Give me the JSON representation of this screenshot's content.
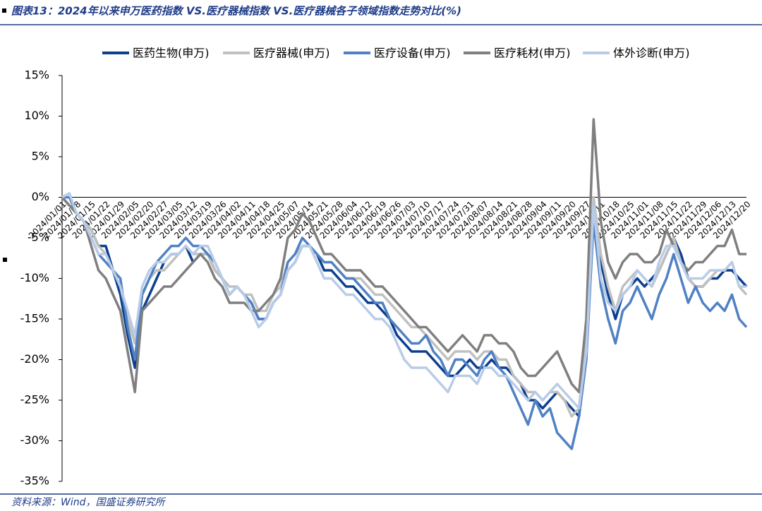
{
  "chart_data": {
    "type": "line",
    "title": "图表13：2024年以来申万医药指数 VS.医疗器械指数 VS.医疗器械各子领域指数走势对比(%)",
    "source": "资料来源：Wind，国盛证券研究所",
    "categories": [
      "2024/01/01",
      null,
      "2024/01/08",
      null,
      "2024/01/15",
      null,
      "2024/01/22",
      null,
      "2024/01/29",
      null,
      "2024/02/05",
      null,
      "2024/02/20",
      null,
      "2024/02/27",
      null,
      "2024/03/05",
      null,
      "2024/03/12",
      null,
      "2024/03/19",
      null,
      "2024/03/26",
      null,
      "2024/04/02",
      null,
      "2024/04/11",
      null,
      "2024/04/18",
      null,
      "2024/04/25",
      null,
      "2024/05/07",
      null,
      "2024/05/14",
      null,
      "2024/05/21",
      null,
      "2024/05/28",
      null,
      "2024/06/04",
      null,
      "2024/06/12",
      null,
      "2024/06/19",
      null,
      "2024/06/26",
      null,
      "2024/07/03",
      null,
      "2024/07/10",
      null,
      "2024/07/17",
      null,
      "2024/07/24",
      null,
      "2024/07/31",
      null,
      "2024/08/07",
      null,
      "2024/08/14",
      null,
      "2024/08/21",
      null,
      "2024/08/28",
      null,
      "2024/09/04",
      null,
      "2024/09/11",
      null,
      "2024/09/20",
      null,
      "2024/09/27",
      null,
      "2024/10/11",
      null,
      "2024/10/18",
      null,
      "2024/10/25",
      null,
      "2024/11/01",
      null,
      "2024/11/08",
      null,
      "2024/11/15",
      null,
      "2024/11/22",
      null,
      "2024/11/29",
      null,
      "2024/12/06",
      null,
      "2024/12/13",
      null,
      "2024/12/20"
    ],
    "series": [
      {
        "name": "医药生物(申万)",
        "color": "#0d3f8f",
        "values": [
          0,
          -1,
          -2,
          -3,
          -4,
          -6,
          -6,
          -9,
          -12,
          -17,
          -21,
          -14,
          -12,
          -10,
          -8,
          -7,
          -7,
          -6,
          -8,
          -7,
          -7,
          -9,
          -10,
          -12,
          -11,
          -12,
          -13,
          -15,
          -15,
          -13,
          -12,
          -9,
          -8,
          -6,
          -6,
          -7,
          -9,
          -9,
          -10,
          -11,
          -11,
          -12,
          -13,
          -13,
          -14,
          -15,
          -17,
          -18,
          -19,
          -19,
          -19,
          -20,
          -21,
          -22,
          -22,
          -21,
          -20,
          -21,
          -21,
          -20,
          -21,
          -21,
          -22,
          -23,
          -25,
          -25,
          -26,
          -25,
          -24,
          -25,
          -26,
          -27,
          -18,
          -2,
          -8,
          -12,
          -15,
          -12,
          -11,
          -10,
          -11,
          -10,
          -9,
          -7,
          -5,
          -7,
          -10,
          -11,
          -11,
          -10,
          -10,
          -9,
          -9,
          -10,
          -11
        ]
      },
      {
        "name": "医疗器械(申万)",
        "color": "#c0c0c0",
        "values": [
          0,
          -1,
          -2,
          -3,
          -4,
          -6,
          -7,
          -9,
          -11,
          -15,
          -18,
          -12,
          -10,
          -9,
          -9,
          -8,
          -7,
          -6,
          -7,
          -7,
          -7,
          -9,
          -10,
          -11,
          -11,
          -12,
          -12,
          -14,
          -14,
          -12,
          -11,
          -8,
          -7,
          -6,
          -6,
          -7,
          -8,
          -8,
          -9,
          -10,
          -10,
          -10,
          -11,
          -12,
          -12,
          -13,
          -14,
          -15,
          -16,
          -16,
          -17,
          -18,
          -19,
          -20,
          -19,
          -19,
          -19,
          -20,
          -19,
          -19,
          -20,
          -20,
          -22,
          -23,
          -24,
          -24,
          -25,
          -24,
          -24,
          -25,
          -27,
          -26,
          -17,
          0,
          -7,
          -11,
          -14,
          -11,
          -10,
          -9,
          -10,
          -11,
          -9,
          -7,
          -5,
          -8,
          -10,
          -11,
          -11,
          -10,
          -9,
          -9,
          -8,
          -11,
          -12
        ]
      },
      {
        "name": "医疗设备(申万)",
        "color": "#4f81c4",
        "values": [
          0,
          0,
          -2,
          -3,
          -5,
          -7,
          -8,
          -9,
          -10,
          -16,
          -20,
          -12,
          -10,
          -8,
          -7,
          -6,
          -6,
          -5,
          -6,
          -6,
          -7,
          -8,
          -10,
          -12,
          -11,
          -12,
          -13,
          -15,
          -15,
          -13,
          -12,
          -8,
          -7,
          -5,
          -6,
          -7,
          -8,
          -8,
          -9,
          -10,
          -10,
          -11,
          -12,
          -13,
          -13,
          -15,
          -16,
          -17,
          -18,
          -18,
          -17,
          -19,
          -20,
          -22,
          -20,
          -20,
          -21,
          -22,
          -20,
          -19,
          -21,
          -22,
          -24,
          -26,
          -28,
          -25,
          -27,
          -26,
          -29,
          -30,
          -31,
          -27,
          -20,
          -3,
          -11,
          -15,
          -18,
          -14,
          -13,
          -11,
          -13,
          -15,
          -12,
          -10,
          -7,
          -10,
          -13,
          -11,
          -13,
          -14,
          -13,
          -14,
          -12,
          -15,
          -16
        ]
      },
      {
        "name": "医疗耗材(申万)",
        "color": "#7f7f7f",
        "values": [
          0,
          -1,
          -2,
          -3,
          -6,
          -9,
          -10,
          -12,
          -14,
          -19,
          -24,
          -14,
          -13,
          -12,
          -11,
          -11,
          -10,
          -9,
          -8,
          -7,
          -8,
          -10,
          -11,
          -13,
          -13,
          -13,
          -14,
          -14,
          -13,
          -12,
          -10,
          -5,
          -4,
          -2,
          -3,
          -5,
          -7,
          -7,
          -8,
          -9,
          -9,
          -9,
          -10,
          -11,
          -11,
          -12,
          -13,
          -14,
          -15,
          -16,
          -16,
          -17,
          -18,
          -19,
          -18,
          -17,
          -18,
          -19,
          -17,
          -17,
          -18,
          -18,
          -19,
          -21,
          -22,
          -22,
          -21,
          -20,
          -19,
          -21,
          -23,
          -24,
          -15,
          9.6,
          -3,
          -8,
          -10,
          -8,
          -7,
          -7,
          -8,
          -8,
          -7,
          -4,
          -6,
          -8,
          -9,
          -8,
          -8,
          -7,
          -6,
          -6,
          -4,
          -7,
          -7
        ]
      },
      {
        "name": "体外诊断(申万)",
        "color": "#b8cce8",
        "values": [
          0,
          0.5,
          -2,
          -3,
          -5,
          -7,
          -7,
          -9,
          -11,
          -14,
          -17,
          -11,
          -9,
          -8,
          -8,
          -7,
          -7,
          -6,
          -7,
          -6,
          -6,
          -8,
          -10,
          -12,
          -11,
          -12,
          -14,
          -16,
          -15,
          -13,
          -12,
          -9,
          -8,
          -6,
          -6,
          -8,
          -10,
          -10,
          -11,
          -12,
          -12,
          -13,
          -14,
          -15,
          -15,
          -16,
          -18,
          -20,
          -21,
          -21,
          -21,
          -22,
          -23,
          -24,
          -22,
          -22,
          -22,
          -23,
          -21,
          -21,
          -22,
          -22,
          -23,
          -24,
          -25,
          -24,
          -25,
          -24,
          -23,
          -24,
          -25,
          -26,
          -19,
          -1,
          -10,
          -13,
          -14,
          -12,
          -11,
          -9,
          -10,
          -11,
          -8,
          -6,
          -6,
          -8,
          -10,
          -10,
          -10,
          -9,
          -9,
          -9,
          -8,
          -11,
          -11
        ]
      }
    ],
    "ylim": [
      -35,
      15
    ],
    "yticks": [
      {
        "value": -35,
        "label": "-35%"
      },
      {
        "value": -30,
        "label": "-30%"
      },
      {
        "value": -25,
        "label": "-25%"
      },
      {
        "value": -20,
        "label": "-20%"
      },
      {
        "value": -15,
        "label": "-15%"
      },
      {
        "value": -10,
        "label": "-10%"
      },
      {
        "value": -5,
        "label": "-5%"
      },
      {
        "value": 0,
        "label": "0%"
      },
      {
        "value": 5,
        "label": "5%"
      },
      {
        "value": 10,
        "label": "10%"
      },
      {
        "value": 15,
        "label": "15%"
      }
    ],
    "legend": "top"
  }
}
